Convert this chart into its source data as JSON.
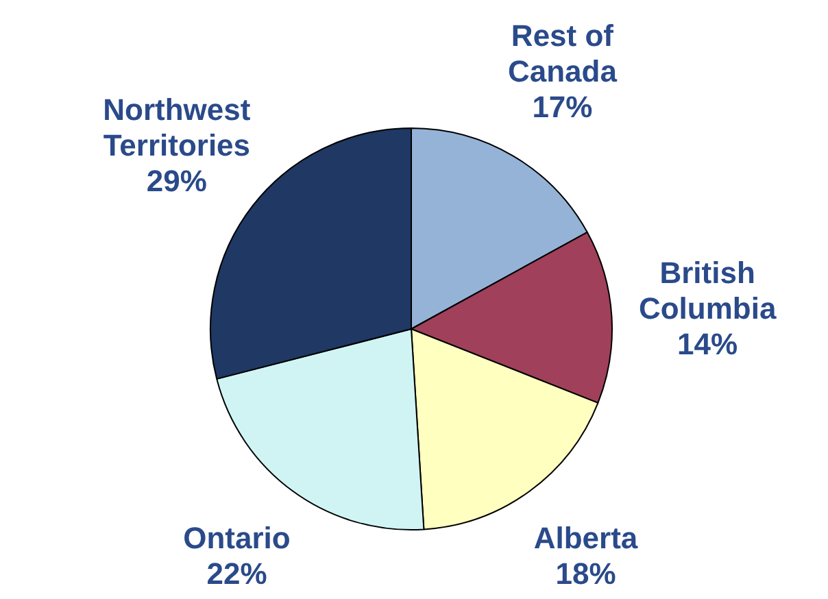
{
  "chart_data": {
    "type": "pie",
    "categories": [
      "Rest of Canada",
      "British Columbia",
      "Alberta",
      "Ontario",
      "Northwest Territories"
    ],
    "values": [
      17,
      14,
      18,
      22,
      29
    ],
    "value_labels": [
      "17%",
      "14%",
      "18%",
      "22%",
      "29%"
    ],
    "colors": [
      "#95b3d7",
      "#a0405a",
      "#ffffc0",
      "#d0f4f4",
      "#1f3864"
    ],
    "legend": false
  }
}
